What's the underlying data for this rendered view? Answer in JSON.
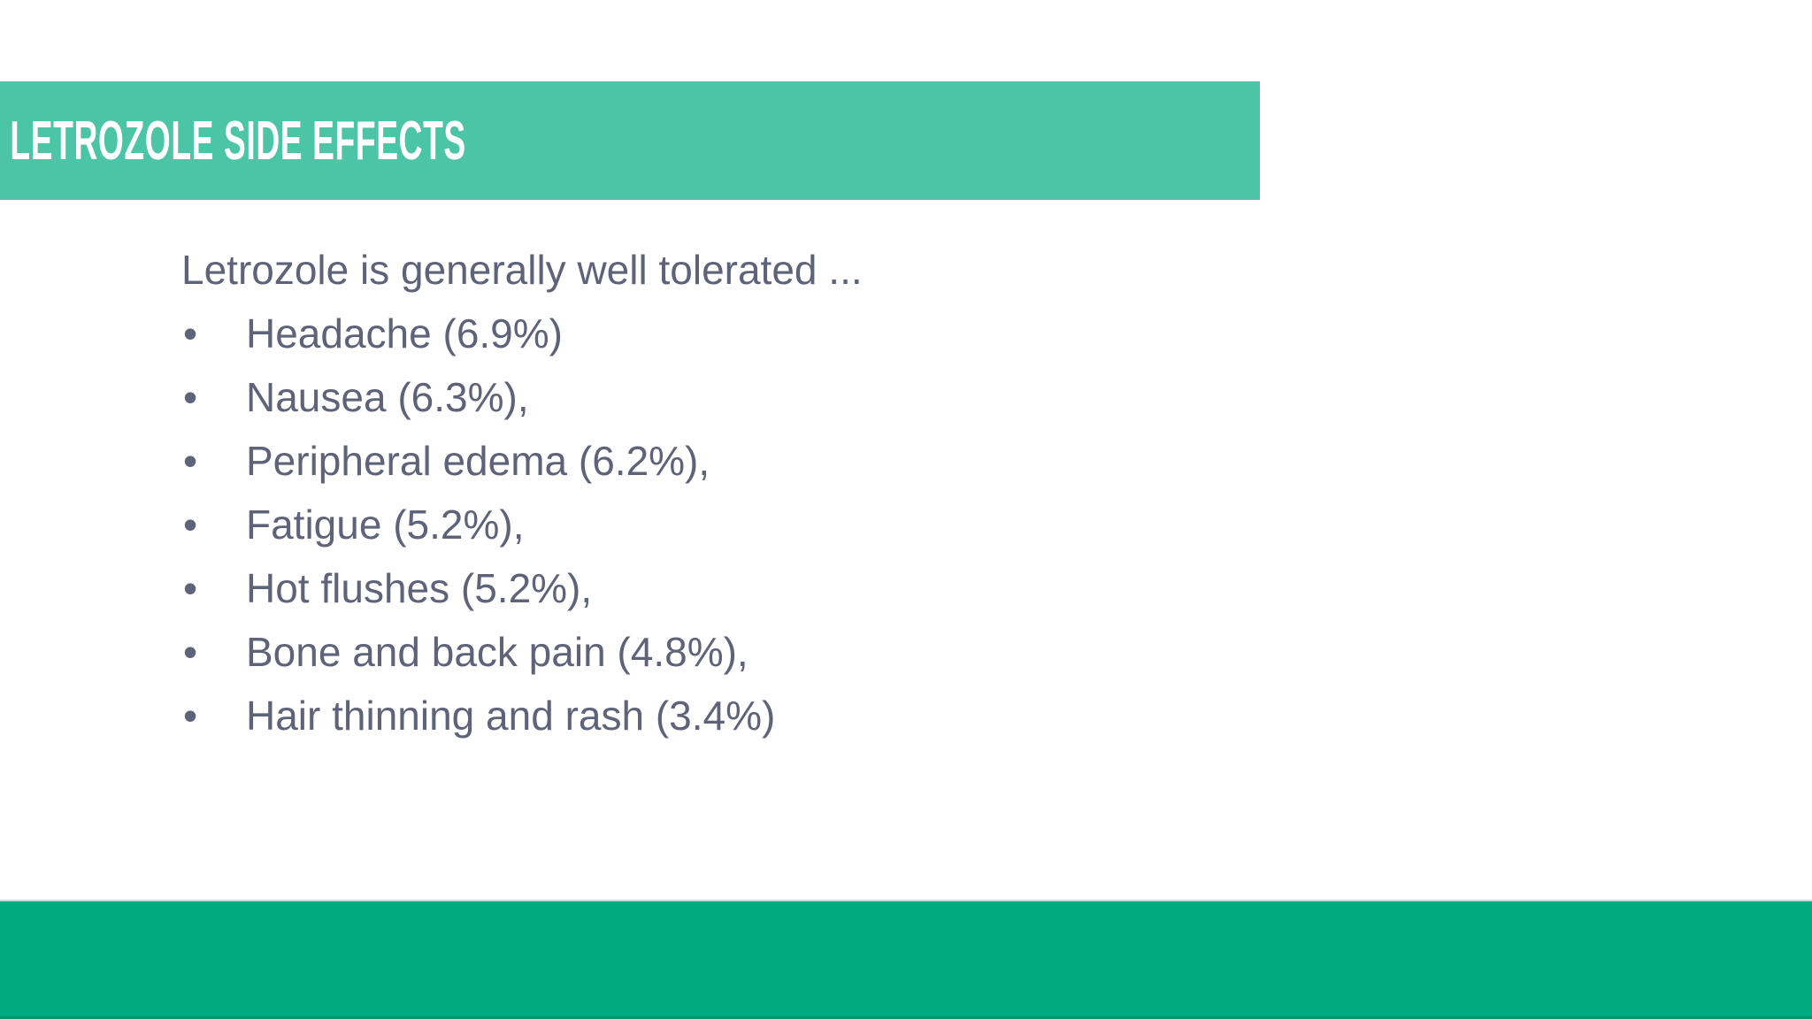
{
  "slide": {
    "title": "LETROZOLE SIDE EFFECTS",
    "body": {
      "intro": "Letrozole is generally well tolerated ...",
      "bullet_char": "•",
      "bullets": [
        "Headache (6.9%)",
        "Nausea (6.3%),",
        "Peripheral edema (6.2%),",
        "Fatigue (5.2%),",
        "Hot flushes (5.2%),",
        "Bone and back pain (4.8%),",
        "Hair thinning and rash (3.4%)"
      ]
    },
    "colors": {
      "header_band": "#4bc5a5",
      "footer_band": "#00ab80",
      "body_text": "#5f6379",
      "title_text": "#ffffff"
    }
  }
}
